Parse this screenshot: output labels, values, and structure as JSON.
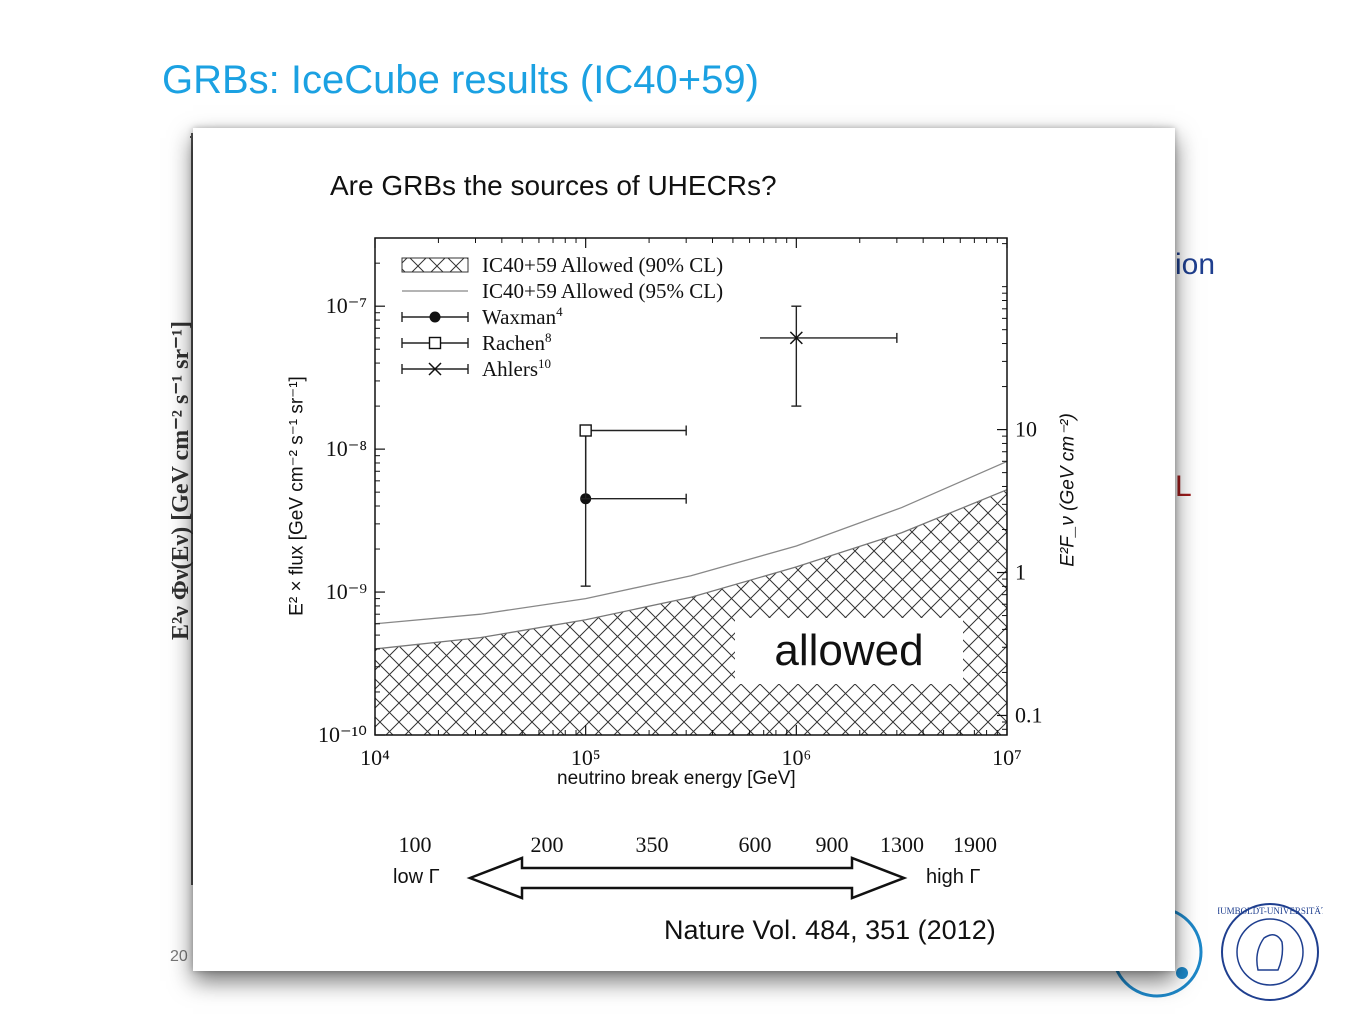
{
  "slide": {
    "title": "GRBs: IceCube results (IC40+59)",
    "page_number": "20",
    "background_fragments": [
      "ion",
      "L"
    ]
  },
  "overlay": {
    "question": "Are GRBs the sources of UHECRs?",
    "allowed_label": "allowed",
    "reference": "Nature Vol. 484, 351 (2012)"
  },
  "chart_data": {
    "type": "scatter",
    "xlabel": "neutrino break energy [GeV]",
    "ylabel": "E² × flux [GeV cm⁻² s⁻¹ sr⁻¹]",
    "ylabel_right": "E²F_ν (GeV cm⁻²)",
    "x_scale": "log",
    "y_scale": "log",
    "xlim": [
      10000,
      10000000
    ],
    "ylim": [
      1e-10,
      3e-07
    ],
    "x_ticks": [
      "10⁴",
      "10⁵",
      "10⁶",
      "10⁷"
    ],
    "y_ticks": [
      "10⁻¹⁰",
      "10⁻⁹",
      "10⁻⁸",
      "10⁻⁷"
    ],
    "y2_ticks": [
      "0.1",
      "1",
      "10"
    ],
    "legend_position": "top-left",
    "grid": false,
    "series": [
      {
        "name": "IC40+59 Allowed (90% CL)",
        "style": "hatched",
        "x": [
          10000,
          31623,
          100000,
          316228,
          1000000,
          3162278,
          10000000
        ],
        "y": [
          4e-10,
          4.8e-10,
          6.4e-10,
          9.2e-10,
          1.5e-09,
          2.6e-09,
          5.2e-09
        ]
      },
      {
        "name": "IC40+59 Allowed (95% CL)",
        "style": "line",
        "x": [
          10000,
          31623,
          100000,
          316228,
          1000000,
          3162278,
          10000000
        ],
        "y": [
          6e-10,
          7e-10,
          9e-10,
          1.3e-09,
          2.1e-09,
          3.9e-09,
          8.2e-09
        ]
      },
      {
        "name": "Waxman",
        "superscript": "4",
        "marker": "filled-circle",
        "x": 100000,
        "y": 4.5e-09,
        "xerr": [
          100000,
          300000
        ],
        "yerr": [
          1.1e-09,
          1.3e-08
        ]
      },
      {
        "name": "Rachen",
        "superscript": "8",
        "marker": "open-square",
        "x": 100000,
        "y": 1.35e-08,
        "xerr": [
          100000,
          300000
        ],
        "yerr": [
          4.5e-09,
          1.35e-08
        ]
      },
      {
        "name": "Ahlers",
        "superscript": "10",
        "marker": "cross",
        "x": 1000000,
        "y": 6e-08,
        "xerr": [
          300000,
          3000000
        ],
        "yerr": [
          2e-08,
          1e-07
        ]
      }
    ]
  },
  "lorentz_scale": {
    "values": [
      "100",
      "200",
      "350",
      "600",
      "900",
      "1300",
      "1900"
    ],
    "left_label": "low Γ",
    "right_label": "high Γ"
  }
}
